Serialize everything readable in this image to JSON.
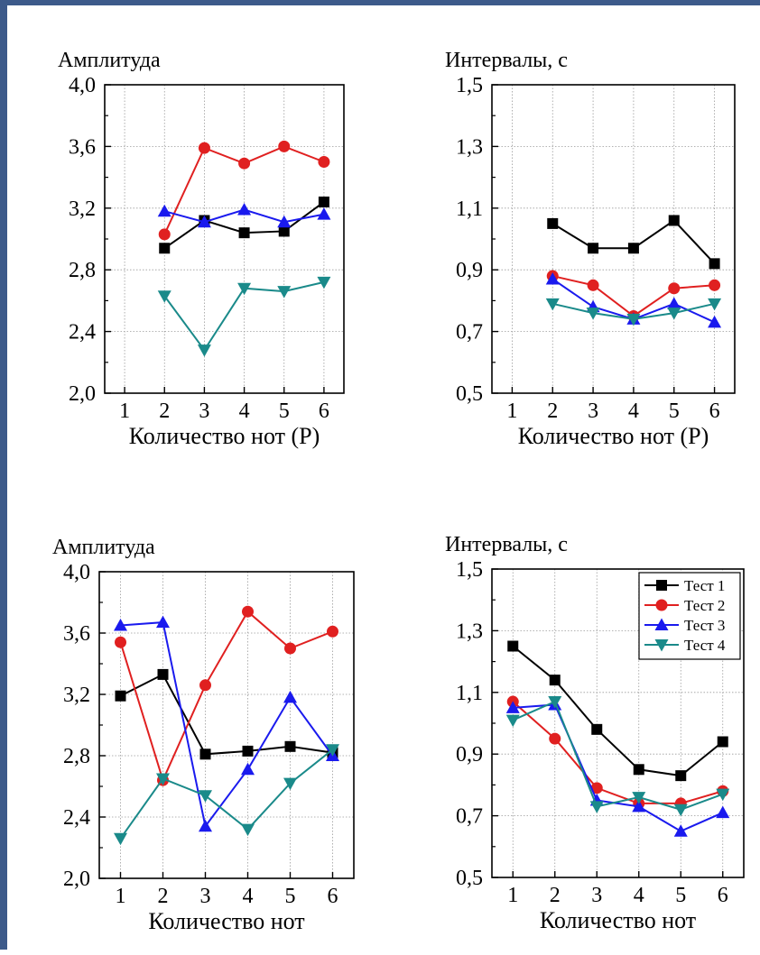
{
  "colors": {
    "frame_border": "#3d5a8a",
    "series": [
      "#000000",
      "#e02020",
      "#1a1aee",
      "#1a8a8a"
    ]
  },
  "chart_data": [
    {
      "type": "line",
      "title": "",
      "ylabel": "Амплитуда",
      "xlabel": "Количество нот (P)",
      "xlim": [
        0.5,
        6.5
      ],
      "ylim": [
        2.0,
        4.0
      ],
      "xticks": [
        "1",
        "2",
        "3",
        "4",
        "5",
        "6"
      ],
      "yticks": [
        "2,0",
        "2,4",
        "2,8",
        "3,2",
        "3,6",
        "4,0"
      ],
      "ytick_values": [
        2.0,
        2.4,
        2.8,
        3.2,
        3.6,
        4.0
      ],
      "grid": true,
      "legend": false,
      "x": [
        2,
        3,
        4,
        5,
        6
      ],
      "series": [
        {
          "marker": "square",
          "values": [
            2.94,
            3.12,
            3.04,
            3.05,
            3.24
          ]
        },
        {
          "marker": "circle",
          "values": [
            3.03,
            3.59,
            3.49,
            3.6,
            3.5
          ]
        },
        {
          "marker": "triangle-up",
          "values": [
            3.18,
            3.11,
            3.19,
            3.11,
            3.16
          ]
        },
        {
          "marker": "triangle-down",
          "values": [
            2.63,
            2.28,
            2.68,
            2.66,
            2.72
          ]
        }
      ]
    },
    {
      "type": "line",
      "title": "",
      "ylabel": "Интервалы, с",
      "xlabel": "Количество нот (P)",
      "xlim": [
        0.5,
        6.5
      ],
      "ylim": [
        0.5,
        1.5
      ],
      "xticks": [
        "1",
        "2",
        "3",
        "4",
        "5",
        "6"
      ],
      "yticks": [
        "0,5",
        "0,7",
        "0,9",
        "1,1",
        "1,3",
        "1,5"
      ],
      "ytick_values": [
        0.5,
        0.7,
        0.9,
        1.1,
        1.3,
        1.5
      ],
      "grid": true,
      "legend": false,
      "x": [
        2,
        3,
        4,
        5,
        6
      ],
      "series": [
        {
          "marker": "square",
          "values": [
            1.05,
            0.97,
            0.97,
            1.06,
            0.92
          ]
        },
        {
          "marker": "circle",
          "values": [
            0.88,
            0.85,
            0.75,
            0.84,
            0.85
          ]
        },
        {
          "marker": "triangle-up",
          "values": [
            0.87,
            0.78,
            0.74,
            0.79,
            0.73
          ]
        },
        {
          "marker": "triangle-down",
          "values": [
            0.79,
            0.76,
            0.74,
            0.76,
            0.79
          ]
        }
      ]
    },
    {
      "type": "line",
      "title": "",
      "ylabel": "Амплитуда",
      "xlabel": "Количество нот",
      "xlim": [
        0.5,
        6.5
      ],
      "ylim": [
        2.0,
        4.0
      ],
      "xticks": [
        "1",
        "2",
        "3",
        "4",
        "5",
        "6"
      ],
      "yticks": [
        "2,0",
        "2,4",
        "2,8",
        "3,2",
        "3,6",
        "4,0"
      ],
      "ytick_values": [
        2.0,
        2.4,
        2.8,
        3.2,
        3.6,
        4.0
      ],
      "grid": true,
      "legend": false,
      "x": [
        1,
        2,
        3,
        4,
        5,
        6
      ],
      "series": [
        {
          "marker": "square",
          "values": [
            3.19,
            3.33,
            2.81,
            2.83,
            2.86,
            2.82
          ]
        },
        {
          "marker": "circle",
          "values": [
            3.54,
            2.64,
            3.26,
            3.74,
            3.5,
            3.61
          ]
        },
        {
          "marker": "triangle-up",
          "values": [
            3.65,
            3.67,
            2.34,
            2.71,
            3.18,
            2.8
          ]
        },
        {
          "marker": "triangle-down",
          "values": [
            2.26,
            2.65,
            2.54,
            2.32,
            2.62,
            2.84
          ]
        }
      ]
    },
    {
      "type": "line",
      "title": "",
      "ylabel": "Интервалы, с",
      "xlabel": "Количество нот",
      "xlim": [
        0.5,
        6.5
      ],
      "ylim": [
        0.5,
        1.5
      ],
      "xticks": [
        "1",
        "2",
        "3",
        "4",
        "5",
        "6"
      ],
      "yticks": [
        "0,5",
        "0,7",
        "0,9",
        "1,1",
        "1,3",
        "1,5"
      ],
      "ytick_values": [
        0.5,
        0.7,
        0.9,
        1.1,
        1.3,
        1.5
      ],
      "grid": true,
      "legend": true,
      "legend_position": "top-right",
      "x": [
        1,
        2,
        3,
        4,
        5,
        6
      ],
      "series": [
        {
          "name": "Тест 1",
          "marker": "square",
          "values": [
            1.25,
            1.14,
            0.98,
            0.85,
            0.83,
            0.94
          ]
        },
        {
          "name": "Тест 2",
          "marker": "circle",
          "values": [
            1.07,
            0.95,
            0.79,
            0.74,
            0.74,
            0.78
          ]
        },
        {
          "name": "Тест 3",
          "marker": "triangle-up",
          "values": [
            1.05,
            1.06,
            0.75,
            0.73,
            0.65,
            0.71
          ]
        },
        {
          "name": "Тест 4",
          "marker": "triangle-down",
          "values": [
            1.01,
            1.07,
            0.73,
            0.76,
            0.72,
            0.77
          ]
        }
      ]
    }
  ]
}
